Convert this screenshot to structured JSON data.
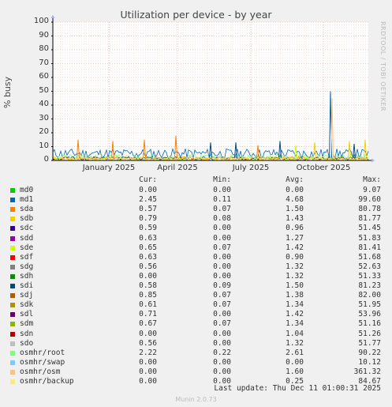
{
  "chart_data": {
    "type": "line",
    "title": "Utilization per device - by year",
    "ylabel": "% busy",
    "side_label": "RRDTOOL / TOBI OETIKER",
    "ylim": [
      0,
      100
    ],
    "yticks": [
      "0",
      "10",
      "20",
      "30",
      "40",
      "50",
      "60",
      "70",
      "80",
      "90",
      "100"
    ],
    "xticks": [
      "January 2025",
      "April 2025",
      "July 2025",
      "October 2025"
    ],
    "grid": true,
    "spikes": [
      {
        "t": 0.08,
        "v": 15,
        "color": "#ff8000"
      },
      {
        "t": 0.19,
        "v": 14,
        "color": "#ff8000"
      },
      {
        "t": 0.29,
        "v": 15,
        "color": "#ff8000"
      },
      {
        "t": 0.39,
        "v": 18,
        "color": "#ff8000"
      },
      {
        "t": 0.5,
        "v": 13,
        "color": "#00487d"
      },
      {
        "t": 0.58,
        "v": 13,
        "color": "#00487d"
      },
      {
        "t": 0.65,
        "v": 11,
        "color": "#ff8000"
      },
      {
        "t": 0.72,
        "v": 14,
        "color": "#00487d"
      },
      {
        "t": 0.77,
        "v": 11,
        "color": "#ccff00"
      },
      {
        "t": 0.83,
        "v": 13,
        "color": "#ffcc00"
      },
      {
        "t": 0.88,
        "v": 50,
        "color": "#0066b3"
      },
      {
        "t": 0.885,
        "v": 45,
        "color": "#ffbd80"
      },
      {
        "t": 0.94,
        "v": 14,
        "color": "#ffcc00"
      },
      {
        "t": 0.955,
        "v": 12,
        "color": "#00487d"
      },
      {
        "t": 0.99,
        "v": 15,
        "color": "#ffcc00"
      }
    ]
  },
  "legend": {
    "headers": {
      "cur": "Cur:",
      "min": "Min:",
      "avg": "Avg:",
      "max": "Max:"
    },
    "rows": [
      {
        "name": "md0",
        "color": "#00cc00",
        "cur": "0.00",
        "min": "0.00",
        "avg": "0.00",
        "max": "9.07"
      },
      {
        "name": "md1",
        "color": "#0066b3",
        "cur": "2.45",
        "min": "0.11",
        "avg": "4.68",
        "max": "99.60"
      },
      {
        "name": "sda",
        "color": "#ff8000",
        "cur": "0.57",
        "min": "0.07",
        "avg": "1.50",
        "max": "80.78"
      },
      {
        "name": "sdb",
        "color": "#ffcc00",
        "cur": "0.79",
        "min": "0.08",
        "avg": "1.43",
        "max": "81.77"
      },
      {
        "name": "sdc",
        "color": "#330099",
        "cur": "0.59",
        "min": "0.00",
        "avg": "0.96",
        "max": "51.45"
      },
      {
        "name": "sdd",
        "color": "#990099",
        "cur": "0.63",
        "min": "0.00",
        "avg": "1.27",
        "max": "51.83"
      },
      {
        "name": "sde",
        "color": "#ccff00",
        "cur": "0.65",
        "min": "0.07",
        "avg": "1.42",
        "max": "81.41"
      },
      {
        "name": "sdf",
        "color": "#ff0000",
        "cur": "0.63",
        "min": "0.00",
        "avg": "0.90",
        "max": "51.68"
      },
      {
        "name": "sdg",
        "color": "#808080",
        "cur": "0.56",
        "min": "0.00",
        "avg": "1.32",
        "max": "52.63"
      },
      {
        "name": "sdh",
        "color": "#008f00",
        "cur": "0.00",
        "min": "0.00",
        "avg": "1.32",
        "max": "51.33"
      },
      {
        "name": "sdi",
        "color": "#00487d",
        "cur": "0.58",
        "min": "0.09",
        "avg": "1.50",
        "max": "81.23"
      },
      {
        "name": "sdj",
        "color": "#b35a00",
        "cur": "0.85",
        "min": "0.07",
        "avg": "1.38",
        "max": "82.00"
      },
      {
        "name": "sdk",
        "color": "#b38f00",
        "cur": "0.61",
        "min": "0.07",
        "avg": "1.34",
        "max": "51.95"
      },
      {
        "name": "sdl",
        "color": "#6b006b",
        "cur": "0.71",
        "min": "0.00",
        "avg": "1.42",
        "max": "53.96"
      },
      {
        "name": "sdm",
        "color": "#8fb300",
        "cur": "0.67",
        "min": "0.07",
        "avg": "1.34",
        "max": "51.16"
      },
      {
        "name": "sdn",
        "color": "#b30000",
        "cur": "0.00",
        "min": "0.00",
        "avg": "1.04",
        "max": "51.26"
      },
      {
        "name": "sdo",
        "color": "#bebebe",
        "cur": "0.56",
        "min": "0.00",
        "avg": "1.32",
        "max": "51.77"
      },
      {
        "name": "osmhr/root",
        "color": "#80ff80",
        "cur": "2.22",
        "min": "0.22",
        "avg": "2.61",
        "max": "90.22"
      },
      {
        "name": "osmhr/swap",
        "color": "#80c9ff",
        "cur": "0.00",
        "min": "0.00",
        "avg": "0.00",
        "max": "10.12"
      },
      {
        "name": "osmhr/osm",
        "color": "#ffc080",
        "cur": "0.00",
        "min": "0.00",
        "avg": "1.60",
        "max": "361.32"
      },
      {
        "name": "osmhr/backup",
        "color": "#ffe680",
        "cur": "0.00",
        "min": "0.00",
        "avg": "0.25",
        "max": "84.67"
      }
    ]
  },
  "last_update": "Last update: Thu Dec 11 01:00:31 2025",
  "footer": "Munin 2.0.73"
}
